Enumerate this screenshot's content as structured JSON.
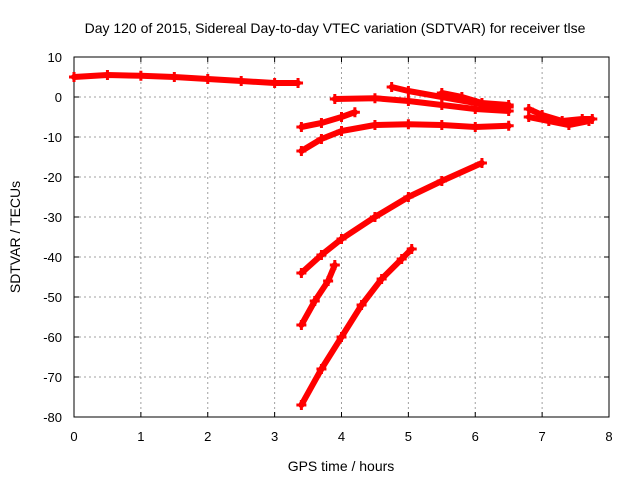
{
  "chart_data": {
    "type": "line",
    "title": "Day 120 of 2015, Sidereal Day-to-day VTEC variation (SDTVAR) for receiver tlse",
    "xlabel": "GPS time / hours",
    "ylabel": "SDTVAR / TECUs",
    "xlim": [
      0,
      8
    ],
    "ylim": [
      -80,
      10
    ],
    "xticks": [
      "0",
      "1",
      "2",
      "3",
      "4",
      "5",
      "6",
      "7",
      "8"
    ],
    "yticks": [
      "10",
      "0",
      "-10",
      "-20",
      "-30",
      "-40",
      "-50",
      "-60",
      "-70",
      "-80"
    ],
    "grid": true,
    "legend": "none",
    "color": "#ff0000",
    "series": [
      {
        "x": [
          0,
          0.5,
          1,
          1.5,
          2,
          2.5,
          3,
          3.35
        ],
        "y": [
          5,
          5.5,
          5.3,
          5,
          4.5,
          4,
          3.5,
          3.5
        ]
      },
      {
        "x": [
          3.4,
          3.7,
          4,
          4.2
        ],
        "y": [
          -7.5,
          -6.5,
          -5,
          -3.8
        ]
      },
      {
        "x": [
          3.9,
          4.5,
          5,
          5.5,
          6,
          6.5
        ],
        "y": [
          -0.5,
          -0.3,
          -1,
          -2,
          -3,
          -3.5
        ]
      },
      {
        "x": [
          4.75,
          5,
          5.5,
          6,
          6.5
        ],
        "y": [
          2.5,
          1.5,
          0,
          -1.5,
          -2.5
        ]
      },
      {
        "x": [
          5.5,
          5.8,
          6.1,
          6.5
        ],
        "y": [
          1,
          0,
          -1.5,
          -2
        ]
      },
      {
        "x": [
          3.4,
          3.7,
          4,
          4.5,
          5,
          5.5,
          6,
          6.5
        ],
        "y": [
          -13.5,
          -10.5,
          -8.5,
          -7,
          -6.8,
          -7,
          -7.5,
          -7.2
        ]
      },
      {
        "x": [
          6.8,
          7,
          7.3,
          7.6,
          7.75
        ],
        "y": [
          -3,
          -4.5,
          -6,
          -5.5,
          -5.5
        ]
      },
      {
        "x": [
          6.8,
          7.1,
          7.4,
          7.7
        ],
        "y": [
          -5,
          -6,
          -7,
          -6
        ]
      },
      {
        "x": [
          3.4,
          3.7,
          4,
          4.5,
          5,
          5.5,
          6.1
        ],
        "y": [
          -44,
          -39.5,
          -35.5,
          -30,
          -25,
          -21,
          -16.5
        ]
      },
      {
        "x": [
          3.4,
          3.6,
          3.8,
          3.9
        ],
        "y": [
          -57,
          -51,
          -46,
          -42
        ]
      },
      {
        "x": [
          3.4,
          3.7,
          4,
          4.3,
          4.6,
          4.9,
          5.05
        ],
        "y": [
          -77,
          -68,
          -60,
          -52,
          -45.5,
          -40.5,
          -38
        ]
      }
    ]
  }
}
